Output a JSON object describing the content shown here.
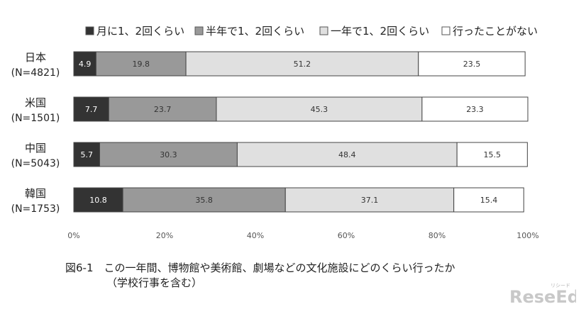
{
  "chart_data": {
    "type": "bar",
    "orientation": "horizontal",
    "stacked": true,
    "percent": true,
    "categories": [
      [
        "日本",
        "(N=4821)"
      ],
      [
        "米国",
        "(N=1501)"
      ],
      [
        "中国",
        "(N=5043)"
      ],
      [
        "韓国",
        "(N=1753)"
      ]
    ],
    "series": [
      {
        "name": "月に1、2回くらい",
        "color": "#333333",
        "values": [
          4.9,
          7.7,
          5.7,
          10.8
        ]
      },
      {
        "name": "半年で1、2回くらい",
        "color": "#999999",
        "values": [
          19.8,
          23.7,
          30.3,
          35.8
        ]
      },
      {
        "name": "一年で1、2回くらい",
        "color": "#e0e0e0",
        "values": [
          51.2,
          45.3,
          48.4,
          37.1
        ]
      },
      {
        "name": "行ったことがない",
        "color": "#ffffff",
        "values": [
          23.5,
          23.3,
          15.5,
          15.4
        ]
      }
    ],
    "xlim": [
      0,
      100
    ],
    "xticks": [
      "0%",
      "20%",
      "40%",
      "60%",
      "80%",
      "100%"
    ],
    "legend_position": "top",
    "grid": false
  },
  "caption": {
    "line1": "図6-1　この一年間、博物館や美術館、劇場などの文化施設にどのくらい行ったか",
    "line2": "（学校行事を含む）"
  },
  "logo": {
    "text": "ReseEd",
    "sub": "リシード"
  }
}
